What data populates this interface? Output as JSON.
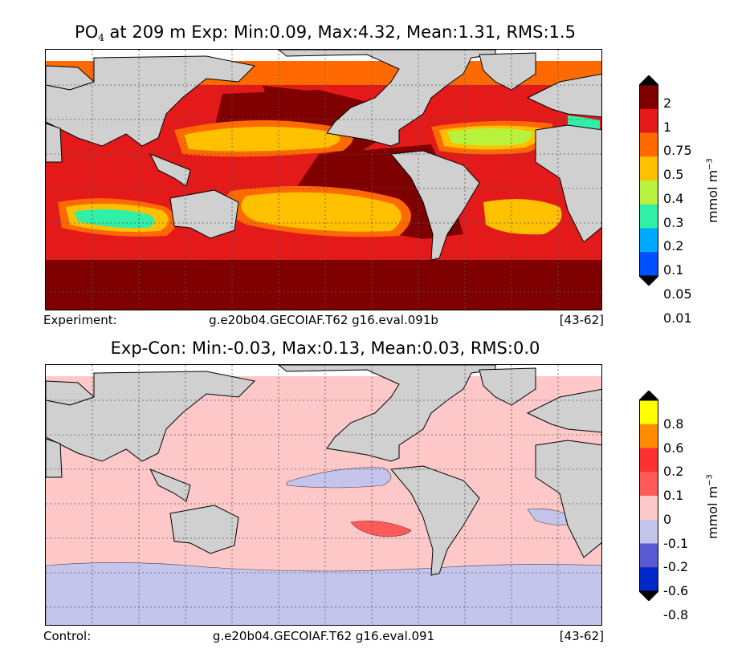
{
  "panels": [
    {
      "title_species": "PO",
      "title_sub": "4",
      "title_text": " at 209 m Exp: Min:0.09, Max:4.32, Mean:1.31, RMS:1.5",
      "footer": {
        "label": "Experiment:",
        "case": "g.e20b04.GECOIAF.T62 g16.eval.091b",
        "years": "[43-62]"
      },
      "colorbar": {
        "ticks": [
          "2",
          "1",
          "0.75",
          "0.5",
          "0.4",
          "0.3",
          "0.2",
          "0.1",
          "0.05",
          "0.01"
        ],
        "colors": [
          "#7f0000",
          "#e41a1a",
          "#ff6a00",
          "#ffc000",
          "#b8f23c",
          "#30f0a8",
          "#00a8ff",
          "#0050ff",
          "#0000cc",
          "#00007f"
        ],
        "unit_main": "mmol m",
        "unit_exp": "−3"
      }
    },
    {
      "title_text": "Exp-Con: Min:-0.03, Max:0.13, Mean:0.03, RMS:0.0",
      "footer": {
        "label": "Control:",
        "case": "g.e20b04.GECOIAF.T62 g16.eval.091",
        "years": "[43-62]"
      },
      "colorbar": {
        "ticks": [
          "0.8",
          "0.6",
          "0.2",
          "0.1",
          "0",
          "-0.1",
          "-0.2",
          "-0.6",
          "-0.8"
        ],
        "colors": [
          "#ffff00",
          "#ff8c00",
          "#ff3030",
          "#ff5a5a",
          "#ffc8c8",
          "#c4c4ec",
          "#5a5ad2",
          "#0028c8",
          "#0090d8",
          "#00ffff"
        ],
        "unit_main": "mmol m",
        "unit_exp": "−3"
      }
    }
  ]
}
